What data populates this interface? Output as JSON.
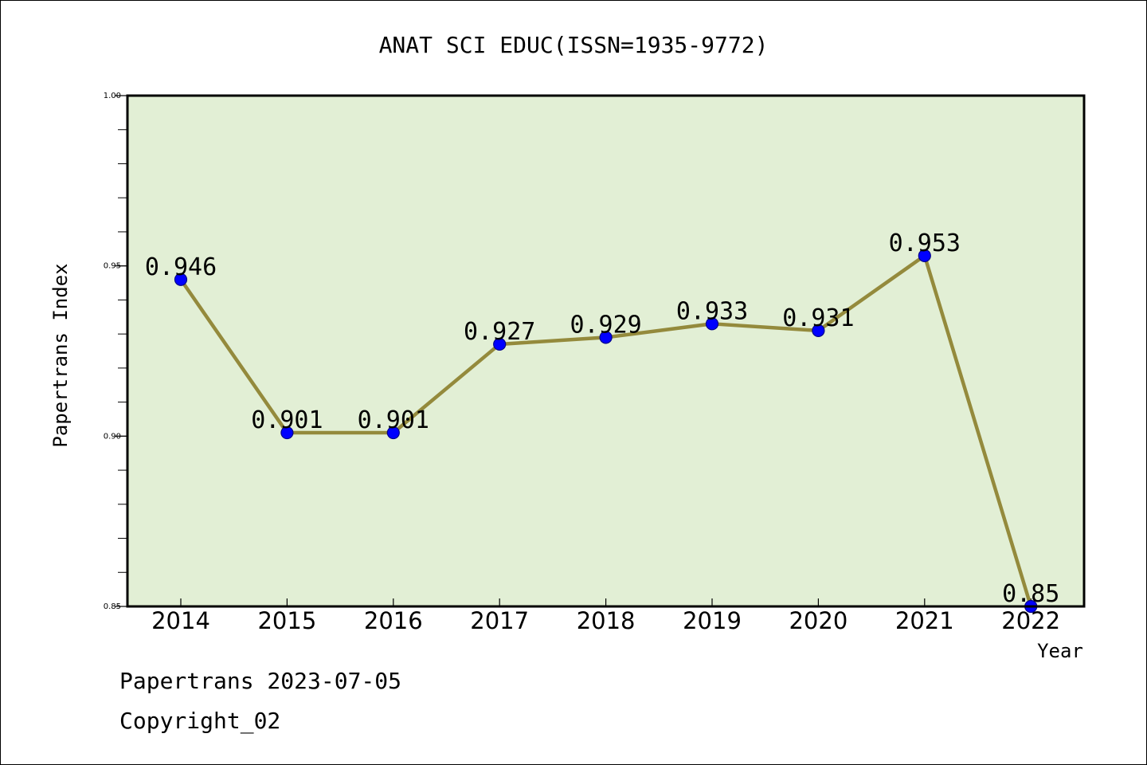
{
  "chart_data": {
    "type": "line",
    "title": "ANAT SCI EDUC(ISSN=1935-9772)",
    "xlabel": "Year",
    "ylabel": "Papertrans Index",
    "x": [
      "2014",
      "2015",
      "2016",
      "2017",
      "2018",
      "2019",
      "2020",
      "2021",
      "2022"
    ],
    "values": [
      0.946,
      0.901,
      0.901,
      0.927,
      0.929,
      0.933,
      0.931,
      0.953,
      0.85
    ],
    "data_labels": [
      "0.946",
      "0.901",
      "0.901",
      "0.927",
      "0.929",
      "0.933",
      "0.931",
      "0.953",
      "0.85"
    ],
    "ylim": [
      0.85,
      1.0
    ],
    "y_ticks": [
      0.85,
      0.9,
      0.95,
      1.0
    ],
    "y_tick_labels": [
      "0.85",
      "0.90",
      "0.95",
      "1.00"
    ],
    "y_minor_step": 0.01,
    "grid": false,
    "legend": "none",
    "colors": {
      "plot_background": "#e2efd5",
      "line": "#948a3c",
      "marker_fill": "#0000ff",
      "marker_edge": "#00008b",
      "axes": "#000000"
    }
  },
  "footer": {
    "line1": "Papertrans 2023-07-05",
    "line2": "Copyright_02"
  }
}
